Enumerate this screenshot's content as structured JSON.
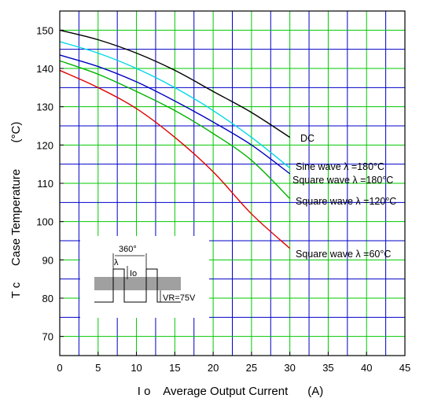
{
  "chart_data": {
    "type": "line",
    "xlabel": "I o    Average Output Current      (A)",
    "ylabel": "T c     Case Temperature        (°C)",
    "xlim": [
      0,
      45
    ],
    "ylim": [
      65,
      155
    ],
    "xticks": [
      0,
      5,
      10,
      15,
      20,
      25,
      30,
      35,
      40,
      45
    ],
    "yticks": [
      70,
      80,
      90,
      100,
      110,
      120,
      130,
      140,
      150
    ],
    "grid": true,
    "grid_color": "#00c800",
    "minor_grid_color": "#0000c8",
    "series": [
      {
        "name": "DC",
        "color": "#000000",
        "x": [
          0,
          5,
          10,
          15,
          20,
          25,
          30
        ],
        "y": [
          150,
          147.5,
          144,
          139.5,
          134,
          128.5,
          122
        ]
      },
      {
        "name": "Sine wave λ =180°C",
        "color": "#00d8e8",
        "x": [
          0,
          5,
          10,
          15,
          20,
          25,
          30
        ],
        "y": [
          147,
          144,
          140,
          135,
          129,
          122,
          114
        ]
      },
      {
        "name": "Square wave λ =180°C",
        "color": "#0000c0",
        "x": [
          0,
          5,
          10,
          15,
          20,
          25,
          30
        ],
        "y": [
          143.5,
          140.5,
          136.5,
          131.5,
          126,
          120,
          112.5
        ]
      },
      {
        "name": "Square wave λ =120°C",
        "color": "#00b400",
        "x": [
          0,
          5,
          10,
          15,
          20,
          25,
          30
        ],
        "y": [
          142,
          138.5,
          134,
          129,
          123,
          116,
          106
        ]
      },
      {
        "name": "Square wave λ =60°C",
        "color": "#e00000",
        "x": [
          0,
          5,
          10,
          15,
          20,
          25,
          30
        ],
        "y": [
          139.5,
          135,
          129.5,
          122,
          113,
          102,
          93
        ]
      }
    ],
    "annotations": [
      "360°",
      "λ",
      "Io",
      "VR=75V"
    ]
  }
}
